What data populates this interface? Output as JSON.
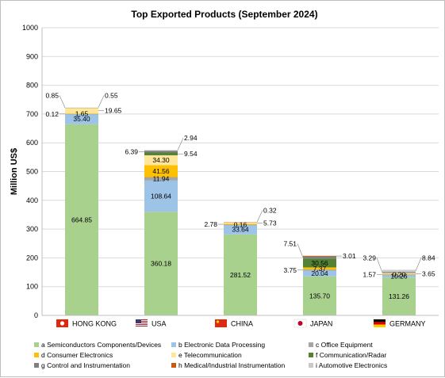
{
  "chart_data": {
    "type": "bar",
    "stacked": true,
    "title": "Top Exported Products (September 2024)",
    "ylabel": "Million US$",
    "xlabel": "",
    "ylim": [
      0,
      1000
    ],
    "yticks": [
      0,
      100,
      200,
      300,
      400,
      500,
      600,
      700,
      800,
      900,
      1000
    ],
    "grid": true,
    "legend_position": "bottom",
    "categories": [
      "HONG KONG",
      "USA",
      "CHINA",
      "JAPAN",
      "GERMANY"
    ],
    "category_flags": [
      "hong-kong-flag-icon",
      "usa-flag-icon",
      "china-flag-icon",
      "japan-flag-icon",
      "germany-flag-icon"
    ],
    "series": [
      {
        "name": "a Semiconductors Components/Devices",
        "color": "#a9d18e",
        "values": [
          664.85,
          360.18,
          281.52,
          135.7,
          131.26
        ]
      },
      {
        "name": "b Electronic Data Processing",
        "color": "#9dc3e6",
        "values": [
          35.4,
          108.64,
          33.64,
          20.04,
          10.26
        ]
      },
      {
        "name": "c Office Equipment",
        "color": "#a5a5a5",
        "values": [
          0.12,
          11.94,
          0.16,
          3.75,
          0.2
        ]
      },
      {
        "name": "d Consumer Electronics",
        "color": "#ffc000",
        "values": [
          1.65,
          41.56,
          2.78,
          7.37,
          1.57
        ]
      },
      {
        "name": "e Telecommunication",
        "color": "#ffe699",
        "values": [
          19.65,
          34.3,
          5.73,
          0.0,
          3.65
        ]
      },
      {
        "name": "f Communication/Radar",
        "color": "#548235",
        "values": [
          0.0,
          9.54,
          0.0,
          30.56,
          0.0
        ]
      },
      {
        "name": "g Control and Instrumentation",
        "color": "#7f7f7f",
        "values": [
          0.85,
          6.39,
          0.0,
          7.51,
          3.29
        ]
      },
      {
        "name": "h Medical/Industrial Instrumentation",
        "color": "#c55a11",
        "values": [
          0.0,
          0.0,
          0.32,
          3.01,
          0.0
        ]
      },
      {
        "name": "i Automotive Electronics",
        "color": "#c9c9c9",
        "values": [
          0.55,
          2.94,
          0.0,
          0.0,
          8.84
        ]
      }
    ],
    "data_labels": [
      [
        {
          "text": "664.85",
          "inside": true,
          "series": 0
        },
        {
          "text": "35.40",
          "inside": true,
          "series": 1
        },
        {
          "text": "1.65",
          "inside": true,
          "series": 3
        },
        {
          "text": "0.12",
          "inside": false,
          "series": 2,
          "side": "left"
        },
        {
          "text": "19.65",
          "inside": false,
          "series": 4,
          "side": "right"
        },
        {
          "text": "0.85",
          "inside": false,
          "series": 6,
          "side": "left"
        },
        {
          "text": "0.55",
          "inside": false,
          "series": 8,
          "side": "right"
        }
      ],
      [
        {
          "text": "360.18",
          "inside": true,
          "series": 0
        },
        {
          "text": "108.64",
          "inside": true,
          "series": 1
        },
        {
          "text": "11.94",
          "inside": true,
          "series": 2
        },
        {
          "text": "41.56",
          "inside": true,
          "series": 3
        },
        {
          "text": "34.30",
          "inside": true,
          "series": 4
        },
        {
          "text": "9.54",
          "inside": false,
          "series": 5,
          "side": "right"
        },
        {
          "text": "6.39",
          "inside": false,
          "series": 6,
          "side": "left"
        },
        {
          "text": "2.94",
          "inside": false,
          "series": 8,
          "side": "right"
        }
      ],
      [
        {
          "text": "281.52",
          "inside": true,
          "series": 0
        },
        {
          "text": "33.64",
          "inside": true,
          "series": 1
        },
        {
          "text": "0.16",
          "inside": true,
          "series": 2
        },
        {
          "text": "2.78",
          "inside": false,
          "series": 3,
          "side": "left"
        },
        {
          "text": "5.73",
          "inside": false,
          "series": 4,
          "side": "right"
        },
        {
          "text": "0.32",
          "inside": false,
          "series": 7,
          "side": "right"
        }
      ],
      [
        {
          "text": "135.70",
          "inside": true,
          "series": 0
        },
        {
          "text": "20.04",
          "inside": true,
          "series": 1
        },
        {
          "text": "7.37",
          "inside": true,
          "series": 3
        },
        {
          "text": "30.56",
          "inside": true,
          "series": 5
        },
        {
          "text": "3.75",
          "inside": false,
          "series": 2,
          "side": "left"
        },
        {
          "text": "7.51",
          "inside": false,
          "series": 6,
          "side": "left"
        },
        {
          "text": "3.01",
          "inside": false,
          "series": 7,
          "side": "right"
        }
      ],
      [
        {
          "text": "131.26",
          "inside": true,
          "series": 0
        },
        {
          "text": "10.26",
          "inside": true,
          "series": 1
        },
        {
          "text": "0.20",
          "inside": true,
          "series": 2
        },
        {
          "text": "1.57",
          "inside": false,
          "series": 3,
          "side": "left"
        },
        {
          "text": "3.65",
          "inside": false,
          "series": 4,
          "side": "right"
        },
        {
          "text": "3.29",
          "inside": false,
          "series": 6,
          "side": "left"
        },
        {
          "text": "8.84",
          "inside": false,
          "series": 8,
          "side": "right"
        }
      ]
    ]
  }
}
